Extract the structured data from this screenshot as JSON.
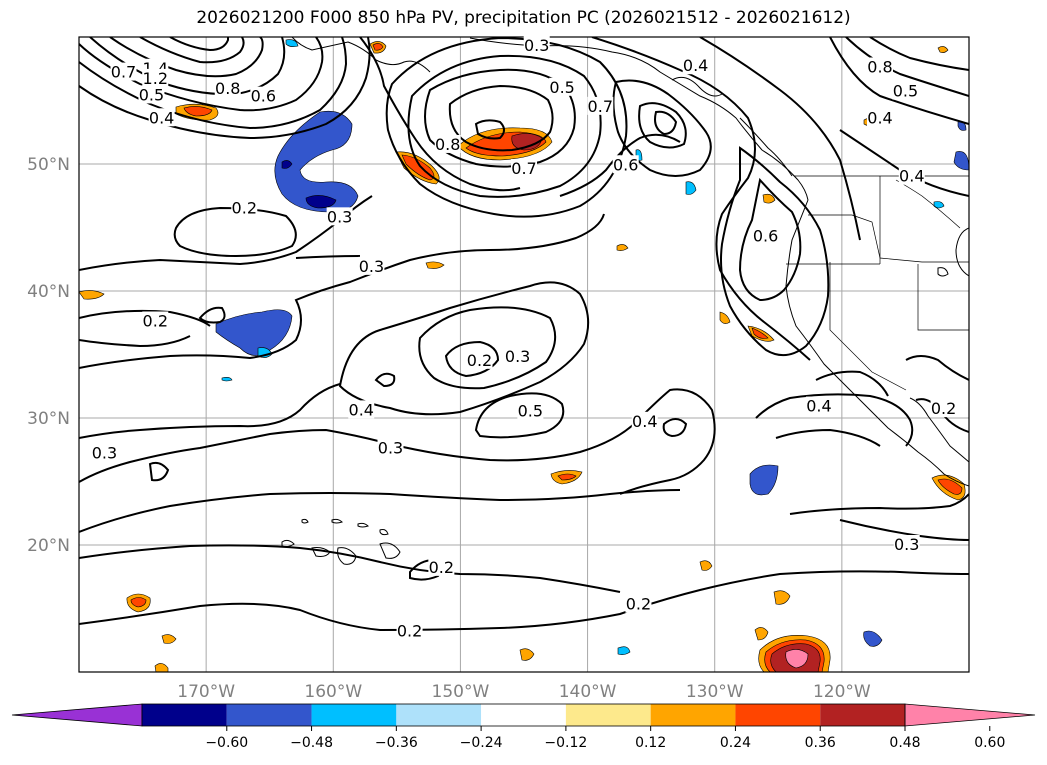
{
  "map": {
    "title": "2026021200 F000 850 hPa PV, precipitation PC (2026021512 - 2026021612)",
    "extent": {
      "lon_min": -180,
      "lon_max": -110,
      "lat_min": 10,
      "lat_max": 60
    },
    "lat_ticks": [
      {
        "value": 20,
        "label": "20°N"
      },
      {
        "value": 30,
        "label": "30°N"
      },
      {
        "value": 40,
        "label": "40°N"
      },
      {
        "value": 50,
        "label": "50°N"
      }
    ],
    "lon_ticks": [
      {
        "value": -170,
        "label": "170°W"
      },
      {
        "value": -160,
        "label": "160°W"
      },
      {
        "value": -150,
        "label": "150°W"
      },
      {
        "value": -140,
        "label": "140°W"
      },
      {
        "value": -130,
        "label": "130°W"
      },
      {
        "value": -120,
        "label": "120°W"
      }
    ],
    "gridlines": true,
    "contour_labels": [
      {
        "text": "0.3",
        "lon": -144,
        "lat": 59.3
      },
      {
        "text": "0.4",
        "lon": -131.5,
        "lat": 57.7
      },
      {
        "text": "0.5",
        "lon": -142,
        "lat": 56.0
      },
      {
        "text": "0.7",
        "lon": -139,
        "lat": 54.5
      },
      {
        "text": "0.8",
        "lon": -117,
        "lat": 57.6
      },
      {
        "text": "0.5",
        "lon": -115,
        "lat": 55.7
      },
      {
        "text": "0.4",
        "lon": -117,
        "lat": 53.6
      },
      {
        "text": "0.4",
        "lon": -114.5,
        "lat": 49.0
      },
      {
        "text": "1.4",
        "lon": -174,
        "lat": 57.5
      },
      {
        "text": "1.2",
        "lon": -174,
        "lat": 56.7
      },
      {
        "text": "0.7",
        "lon": -176.5,
        "lat": 57.2
      },
      {
        "text": "0.5",
        "lon": -174.3,
        "lat": 55.4
      },
      {
        "text": "0.8",
        "lon": -168.3,
        "lat": 55.9
      },
      {
        "text": "0.6",
        "lon": -165.5,
        "lat": 55.3
      },
      {
        "text": "0.4",
        "lon": -173.5,
        "lat": 53.6
      },
      {
        "text": "0.8",
        "lon": -151,
        "lat": 51.5
      },
      {
        "text": "0.7",
        "lon": -145,
        "lat": 49.6
      },
      {
        "text": "0.6",
        "lon": -137,
        "lat": 49.9
      },
      {
        "text": "0.6",
        "lon": -126,
        "lat": 44.3
      },
      {
        "text": "0.2",
        "lon": -167,
        "lat": 46.5
      },
      {
        "text": "0.3",
        "lon": -159.5,
        "lat": 45.8
      },
      {
        "text": "0.3",
        "lon": -157,
        "lat": 41.9
      },
      {
        "text": "0.2",
        "lon": -174,
        "lat": 37.6
      },
      {
        "text": "0.2",
        "lon": -148.5,
        "lat": 34.5
      },
      {
        "text": "0.3",
        "lon": -145.5,
        "lat": 34.8
      },
      {
        "text": "0.4",
        "lon": -157.8,
        "lat": 30.6
      },
      {
        "text": "0.5",
        "lon": -144.5,
        "lat": 30.5
      },
      {
        "text": "0.4",
        "lon": -135.5,
        "lat": 29.7
      },
      {
        "text": "0.3",
        "lon": -155.5,
        "lat": 27.6
      },
      {
        "text": "0.3",
        "lon": -178,
        "lat": 27.2
      },
      {
        "text": "0.4",
        "lon": -121.8,
        "lat": 30.9
      },
      {
        "text": "0.2",
        "lon": -112,
        "lat": 30.7
      },
      {
        "text": "0.3",
        "lon": -114.9,
        "lat": 20.0
      },
      {
        "text": "0.2",
        "lon": -151.5,
        "lat": 18.2
      },
      {
        "text": "0.2",
        "lon": -136,
        "lat": 15.3
      },
      {
        "text": "0.2",
        "lon": -154,
        "lat": 13.2
      }
    ]
  },
  "colorbar": {
    "colors": [
      "#9931d5",
      "#00008b",
      "#3356cc",
      "#00bfff",
      "#aee1fa",
      "#ffffff",
      "#fde98c",
      "#ffa500",
      "#ff4500",
      "#b22222",
      "#ff82a9"
    ],
    "ticks": [
      "−0.60",
      "−0.48",
      "−0.36",
      "−0.24",
      "−0.12",
      "0.12",
      "0.24",
      "0.36",
      "0.48",
      "0.60"
    ]
  }
}
